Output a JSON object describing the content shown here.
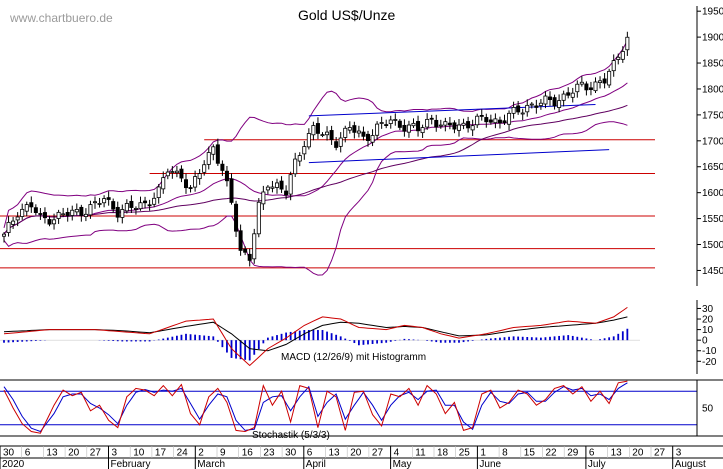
{
  "watermark": "www.chartbuero.de",
  "chart_data": [
    {
      "type": "candlestick",
      "panel": "price",
      "title": "Gold US$/Unze",
      "y_ticks": [
        1450,
        1500,
        1550,
        1600,
        1650,
        1700,
        1750,
        1800,
        1850,
        1900,
        1950
      ],
      "ylim": [
        1420,
        1960
      ],
      "grid": false,
      "horizontal_levels": [
        1455,
        1492,
        1555,
        1637,
        1702
      ],
      "trendlines": [
        {
          "from": {
            "i": 67,
            "v": 1658
          },
          "to": {
            "i": 133,
            "v": 1683
          }
        },
        {
          "from": {
            "i": 67,
            "v": 1748
          },
          "to": {
            "i": 130,
            "v": 1770
          }
        }
      ],
      "indicators": [
        "Bollinger Bands",
        "Moving Average"
      ],
      "close_key": [
        [
          0,
          1515
        ],
        [
          3,
          1565
        ],
        [
          6,
          1575
        ],
        [
          8,
          1548
        ],
        [
          12,
          1555
        ],
        [
          16,
          1562
        ],
        [
          20,
          1575
        ],
        [
          22,
          1588
        ],
        [
          25,
          1565
        ],
        [
          28,
          1570
        ],
        [
          31,
          1580
        ],
        [
          34,
          1600
        ],
        [
          36,
          1645
        ],
        [
          39,
          1635
        ],
        [
          41,
          1600
        ],
        [
          44,
          1660
        ],
        [
          46,
          1690
        ],
        [
          48,
          1640
        ],
        [
          50,
          1580
        ],
        [
          52,
          1490
        ],
        [
          54,
          1475
        ],
        [
          56,
          1570
        ],
        [
          58,
          1620
        ],
        [
          60,
          1615
        ],
        [
          62,
          1600
        ],
        [
          64,
          1655
        ],
        [
          66,
          1700
        ],
        [
          68,
          1725
        ],
        [
          70,
          1710
        ],
        [
          73,
          1700
        ],
        [
          76,
          1725
        ],
        [
          79,
          1705
        ],
        [
          82,
          1725
        ],
        [
          85,
          1738
        ],
        [
          88,
          1730
        ],
        [
          91,
          1720
        ],
        [
          94,
          1745
        ],
        [
          97,
          1725
        ],
        [
          100,
          1730
        ],
        [
          103,
          1735
        ],
        [
          106,
          1742
        ],
        [
          109,
          1738
        ],
        [
          112,
          1752
        ],
        [
          115,
          1768
        ],
        [
          118,
          1772
        ],
        [
          121,
          1778
        ],
        [
          124,
          1790
        ],
        [
          127,
          1805
        ],
        [
          130,
          1810
        ],
        [
          132,
          1815
        ],
        [
          134,
          1845
        ],
        [
          136,
          1885
        ],
        [
          137,
          1900
        ]
      ]
    },
    {
      "type": "line",
      "panel": "macd",
      "label": "MACD (12/26/9) mit Histogramm",
      "y_ticks": [
        30,
        20,
        10,
        0,
        -10,
        -20
      ],
      "ylim": [
        -32,
        38
      ],
      "series": [
        {
          "color": "#cc0000",
          "keys": [
            [
              0,
              6
            ],
            [
              10,
              10
            ],
            [
              20,
              10
            ],
            [
              26,
              8
            ],
            [
              32,
              6
            ],
            [
              40,
              18
            ],
            [
              46,
              20
            ],
            [
              50,
              -8
            ],
            [
              54,
              -24
            ],
            [
              58,
              -8
            ],
            [
              62,
              2
            ],
            [
              66,
              14
            ],
            [
              70,
              22
            ],
            [
              74,
              20
            ],
            [
              78,
              12
            ],
            [
              84,
              10
            ],
            [
              88,
              14
            ],
            [
              92,
              12
            ],
            [
              96,
              6
            ],
            [
              100,
              2
            ],
            [
              106,
              6
            ],
            [
              112,
              12
            ],
            [
              118,
              14
            ],
            [
              124,
              18
            ],
            [
              130,
              16
            ],
            [
              134,
              22
            ],
            [
              137,
              31
            ]
          ]
        },
        {
          "color": "#000000",
          "keys": [
            [
              0,
              8
            ],
            [
              10,
              10
            ],
            [
              20,
              10
            ],
            [
              26,
              9
            ],
            [
              32,
              7
            ],
            [
              40,
              13
            ],
            [
              46,
              17
            ],
            [
              50,
              6
            ],
            [
              54,
              -8
            ],
            [
              58,
              -10
            ],
            [
              62,
              -4
            ],
            [
              66,
              6
            ],
            [
              70,
              14
            ],
            [
              74,
              17
            ],
            [
              78,
              16
            ],
            [
              84,
              12
            ],
            [
              88,
              13
            ],
            [
              92,
              12
            ],
            [
              96,
              8
            ],
            [
              100,
              4
            ],
            [
              106,
              5
            ],
            [
              112,
              9
            ],
            [
              118,
              12
            ],
            [
              124,
              14
            ],
            [
              130,
              16
            ],
            [
              134,
              19
            ],
            [
              137,
              22
            ]
          ]
        }
      ],
      "histogram_color": "#0000cc"
    },
    {
      "type": "line",
      "panel": "stochastic",
      "label": "Stochastik (5/3/3)",
      "y_ticks": [
        50
      ],
      "ylim": [
        0,
        100
      ],
      "levels": [
        20,
        80
      ],
      "series": [
        {
          "color": "#cc0000",
          "keys": [
            [
              0,
              82
            ],
            [
              2,
              50
            ],
            [
              4,
              22
            ],
            [
              6,
              8
            ],
            [
              8,
              5
            ],
            [
              11,
              55
            ],
            [
              13,
              82
            ],
            [
              15,
              72
            ],
            [
              17,
              78
            ],
            [
              19,
              45
            ],
            [
              21,
              55
            ],
            [
              23,
              28
            ],
            [
              25,
              15
            ],
            [
              27,
              70
            ],
            [
              29,
              85
            ],
            [
              31,
              82
            ],
            [
              33,
              72
            ],
            [
              35,
              90
            ],
            [
              37,
              72
            ],
            [
              39,
              92
            ],
            [
              41,
              40
            ],
            [
              43,
              20
            ],
            [
              45,
              70
            ],
            [
              47,
              85
            ],
            [
              49,
              60
            ],
            [
              51,
              10
            ],
            [
              53,
              8
            ],
            [
              55,
              15
            ],
            [
              57,
              90
            ],
            [
              59,
              55
            ],
            [
              61,
              80
            ],
            [
              63,
              25
            ],
            [
              65,
              90
            ],
            [
              67,
              85
            ],
            [
              69,
              15
            ],
            [
              71,
              80
            ],
            [
              73,
              70
            ],
            [
              75,
              10
            ],
            [
              77,
              78
            ],
            [
              79,
              80
            ],
            [
              81,
              38
            ],
            [
              83,
              18
            ],
            [
              85,
              75
            ],
            [
              87,
              70
            ],
            [
              89,
              85
            ],
            [
              91,
              55
            ],
            [
              93,
              90
            ],
            [
              95,
              75
            ],
            [
              97,
              40
            ],
            [
              99,
              60
            ],
            [
              101,
              10
            ],
            [
              103,
              15
            ],
            [
              105,
              75
            ],
            [
              107,
              82
            ],
            [
              109,
              50
            ],
            [
              111,
              60
            ],
            [
              113,
              82
            ],
            [
              115,
              75
            ],
            [
              117,
              55
            ],
            [
              119,
              65
            ],
            [
              121,
              85
            ],
            [
              123,
              90
            ],
            [
              125,
              75
            ],
            [
              127,
              88
            ],
            [
              129,
              62
            ],
            [
              131,
              80
            ],
            [
              133,
              58
            ],
            [
              135,
              95
            ],
            [
              137,
              98
            ]
          ]
        },
        {
          "color": "#0000cc",
          "keys": [
            [
              0,
              88
            ],
            [
              2,
              65
            ],
            [
              4,
              35
            ],
            [
              6,
              14
            ],
            [
              8,
              8
            ],
            [
              11,
              40
            ],
            [
              13,
              70
            ],
            [
              15,
              75
            ],
            [
              17,
              75
            ],
            [
              19,
              58
            ],
            [
              21,
              50
            ],
            [
              23,
              38
            ],
            [
              25,
              22
            ],
            [
              27,
              55
            ],
            [
              29,
              78
            ],
            [
              31,
              83
            ],
            [
              33,
              78
            ],
            [
              35,
              82
            ],
            [
              37,
              80
            ],
            [
              39,
              85
            ],
            [
              41,
              58
            ],
            [
              43,
              30
            ],
            [
              45,
              55
            ],
            [
              47,
              75
            ],
            [
              49,
              70
            ],
            [
              51,
              28
            ],
            [
              53,
              10
            ],
            [
              55,
              12
            ],
            [
              57,
              60
            ],
            [
              59,
              70
            ],
            [
              61,
              72
            ],
            [
              63,
              45
            ],
            [
              65,
              70
            ],
            [
              67,
              88
            ],
            [
              69,
              35
            ],
            [
              71,
              60
            ],
            [
              73,
              75
            ],
            [
              75,
              30
            ],
            [
              77,
              55
            ],
            [
              79,
              78
            ],
            [
              81,
              55
            ],
            [
              83,
              28
            ],
            [
              85,
              55
            ],
            [
              87,
              72
            ],
            [
              89,
              78
            ],
            [
              91,
              65
            ],
            [
              93,
              80
            ],
            [
              95,
              82
            ],
            [
              97,
              55
            ],
            [
              99,
              55
            ],
            [
              101,
              25
            ],
            [
              103,
              12
            ],
            [
              105,
              55
            ],
            [
              107,
              78
            ],
            [
              109,
              62
            ],
            [
              111,
              58
            ],
            [
              113,
              75
            ],
            [
              115,
              78
            ],
            [
              117,
              62
            ],
            [
              119,
              62
            ],
            [
              121,
              78
            ],
            [
              123,
              88
            ],
            [
              125,
              82
            ],
            [
              127,
              85
            ],
            [
              129,
              72
            ],
            [
              131,
              75
            ],
            [
              133,
              65
            ],
            [
              135,
              85
            ],
            [
              137,
              95
            ]
          ]
        }
      ]
    }
  ],
  "x_axis": {
    "day_labels": [
      "30",
      "6",
      "13",
      "20",
      "27",
      "3",
      "10",
      "17",
      "24",
      "2",
      "9",
      "16",
      "23",
      "30",
      "6",
      "13",
      "20",
      "27",
      "4",
      "11",
      "18",
      "25",
      "1",
      "8",
      "15",
      "22",
      "29",
      "6",
      "13",
      "20",
      "27",
      "3"
    ],
    "month_labels": [
      {
        "label": "2020",
        "day_index": 0
      },
      {
        "label": "February",
        "day_index": 5
      },
      {
        "label": "March",
        "day_index": 9
      },
      {
        "label": "April",
        "day_index": 14
      },
      {
        "label": "May",
        "day_index": 18
      },
      {
        "label": "June",
        "day_index": 22
      },
      {
        "label": "July",
        "day_index": 27
      },
      {
        "label": "August",
        "day_index": 31
      }
    ]
  },
  "colors": {
    "candle_body_up": "#ffffff",
    "candle_body_down": "#000000",
    "level_line": "#cc0000",
    "bollinger": "#800080",
    "moving_average": "#800080",
    "trend_low": "#0000cc",
    "trend_high": "#0000cc",
    "grid_minor": "#bbbbbb"
  }
}
